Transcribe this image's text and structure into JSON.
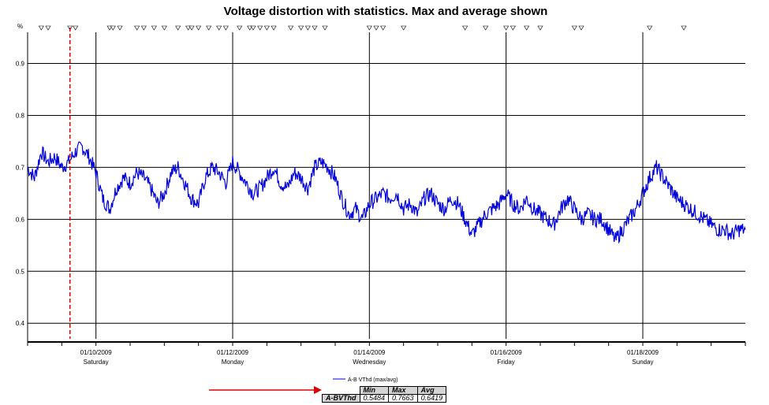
{
  "chart_data": {
    "type": "line",
    "title": "Voltage distortion with statistics. Max and average shown",
    "y_unit_label": "%",
    "ylim": [
      0.37,
      0.96
    ],
    "yticks": [
      0.4,
      0.5,
      0.6,
      0.7,
      0.8,
      0.9
    ],
    "ytick_labels": [
      "0.4",
      "0.5",
      "0.6",
      "0.7",
      "0.8",
      "0.9"
    ],
    "xlim_days": [
      0,
      10.5
    ],
    "x_date_ticks": [
      {
        "day": 1,
        "date": "01/10/2009",
        "weekday": "Saturday"
      },
      {
        "day": 3,
        "date": "01/12/2009",
        "weekday": "Monday"
      },
      {
        "day": 5,
        "date": "01/14/2009",
        "weekday": "Wednesday"
      },
      {
        "day": 7,
        "date": "01/16/2009",
        "weekday": "Friday"
      },
      {
        "day": 9,
        "date": "01/18/2009",
        "weekday": "Sunday"
      }
    ],
    "event_marker_day": 0.62,
    "series": [
      {
        "name": "A-B VThd (max/avg)",
        "color": "#0000dd",
        "x": [
          0,
          0.1,
          0.2,
          0.3,
          0.4,
          0.5,
          0.6,
          0.7,
          0.8,
          0.9,
          1.0,
          1.1,
          1.2,
          1.3,
          1.4,
          1.5,
          1.6,
          1.7,
          1.8,
          1.9,
          2.0,
          2.1,
          2.2,
          2.3,
          2.4,
          2.5,
          2.6,
          2.7,
          2.8,
          2.9,
          3.0,
          3.1,
          3.2,
          3.3,
          3.4,
          3.5,
          3.6,
          3.7,
          3.8,
          3.9,
          4.0,
          4.1,
          4.2,
          4.3,
          4.4,
          4.5,
          4.6,
          4.7,
          4.8,
          4.9,
          5.0,
          5.1,
          5.2,
          5.3,
          5.4,
          5.5,
          5.6,
          5.7,
          5.8,
          5.9,
          6.0,
          6.1,
          6.2,
          6.3,
          6.4,
          6.5,
          6.6,
          6.7,
          6.8,
          6.9,
          7.0,
          7.1,
          7.2,
          7.3,
          7.4,
          7.5,
          7.6,
          7.7,
          7.8,
          7.9,
          8.0,
          8.1,
          8.2,
          8.3,
          8.4,
          8.5,
          8.6,
          8.7,
          8.8,
          8.9,
          9.0,
          9.1,
          9.2,
          9.3,
          9.4,
          9.5,
          9.6,
          9.7,
          9.8,
          9.9,
          10.0,
          10.1,
          10.2,
          10.3,
          10.4,
          10.5
        ],
        "values": [
          0.7,
          0.68,
          0.73,
          0.71,
          0.72,
          0.7,
          0.71,
          0.73,
          0.74,
          0.72,
          0.69,
          0.64,
          0.62,
          0.66,
          0.68,
          0.67,
          0.69,
          0.68,
          0.66,
          0.63,
          0.65,
          0.69,
          0.7,
          0.67,
          0.64,
          0.63,
          0.68,
          0.7,
          0.69,
          0.67,
          0.71,
          0.69,
          0.67,
          0.65,
          0.66,
          0.68,
          0.7,
          0.67,
          0.66,
          0.69,
          0.68,
          0.66,
          0.7,
          0.71,
          0.7,
          0.68,
          0.64,
          0.61,
          0.62,
          0.6,
          0.63,
          0.64,
          0.65,
          0.64,
          0.65,
          0.62,
          0.63,
          0.61,
          0.64,
          0.65,
          0.63,
          0.62,
          0.64,
          0.63,
          0.6,
          0.57,
          0.59,
          0.61,
          0.62,
          0.63,
          0.65,
          0.63,
          0.62,
          0.64,
          0.62,
          0.61,
          0.6,
          0.59,
          0.62,
          0.64,
          0.62,
          0.6,
          0.61,
          0.6,
          0.6,
          0.58,
          0.56,
          0.58,
          0.6,
          0.62,
          0.65,
          0.68,
          0.7,
          0.68,
          0.66,
          0.64,
          0.63,
          0.62,
          0.61,
          0.6,
          0.59,
          0.58,
          0.58,
          0.57,
          0.58,
          0.58
        ]
      }
    ],
    "legend": {
      "label": "A-B VThd (max/avg)",
      "placement": "bottom-center"
    },
    "grid": true
  },
  "stats": {
    "headers": [
      "Min",
      "Max",
      "Avg"
    ],
    "row_label": "A-BVThd",
    "values": [
      "0.5484",
      "0.7663",
      "0.6419"
    ]
  },
  "arrow_color": "#dd0000",
  "marker_color": "#dd0000"
}
